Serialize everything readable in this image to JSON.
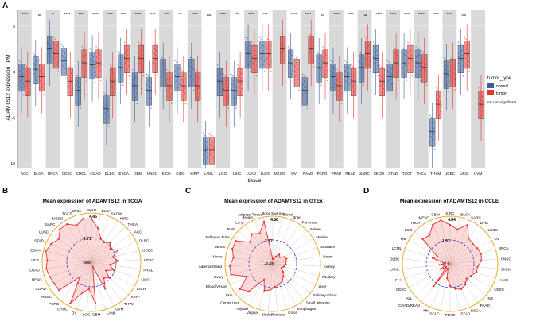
{
  "panel_labels": {
    "a": "A",
    "b": "B",
    "c": "C",
    "d": "D"
  },
  "colors": {
    "normal": "#3b5ea0",
    "tumor": "#e8322e",
    "accent": "#f0a830",
    "ref": "#2a3fd8"
  },
  "panel_a": {
    "ylabel": "ADAMTS12 expression TPM",
    "xlabel": "tissue",
    "legend_title": "tumor_type",
    "legend_items": [
      "normal",
      "tumor"
    ],
    "legend_note": "ns: non-significant",
    "yticks": [
      5,
      0,
      -5,
      -10
    ]
  },
  "chart_data": [
    {
      "type": "box",
      "title": "",
      "xlabel": "tissue",
      "ylabel": "ADAMTS12 expression TPM",
      "ylim": [
        -10.5,
        6.8
      ],
      "categories": [
        "ACC",
        "BLCA",
        "BRCA",
        "CESC",
        "CHOL",
        "COAD",
        "DLBC",
        "ESCA",
        "GBM",
        "HNSC",
        "KICH",
        "KIRC",
        "KIRP",
        "LAML",
        "LGG",
        "LIHC",
        "LUAD",
        "LUSC",
        "MESO",
        "OV",
        "PAAD",
        "PCPG",
        "PRAD",
        "READ",
        "SARC",
        "SKCM",
        "STAD",
        "TGCT",
        "THCA",
        "THYM",
        "UCEC",
        "UCS",
        "UVM"
      ],
      "significance": [
        "****",
        "ns",
        "*",
        "****",
        "****",
        "****",
        "****",
        "****",
        "****",
        "****",
        "***",
        "**",
        "****",
        "ns",
        "****",
        "**",
        "****",
        "***",
        "",
        "****",
        "****",
        "ns",
        "****",
        "****",
        "ns",
        "****",
        "****",
        "****",
        "****",
        "****",
        "****",
        "ns",
        ""
      ],
      "series": [
        {
          "name": "normal",
          "medians": [
            -0.5,
            0.3,
            2.5,
            1.2,
            -2.0,
            0.8,
            -4.0,
            0.5,
            -1.5,
            -2.0,
            0.0,
            -0.5,
            0.0,
            -8.5,
            -1.0,
            -2.0,
            2.0,
            2.0,
            null,
            1.0,
            -2.0,
            0.5,
            -0.5,
            -0.5,
            0.5,
            1.5,
            -0.5,
            1.0,
            1.0,
            -6.5,
            -0.2,
            1.5,
            null
          ]
        },
        {
          "name": "tumor",
          "medians": [
            -1.0,
            -0.5,
            2.0,
            -1.0,
            1.0,
            1.0,
            -1.0,
            1.5,
            1.5,
            1.5,
            -1.5,
            -1.5,
            -1.5,
            -8.5,
            -2.0,
            -1.0,
            1.5,
            2.0,
            2.5,
            0.0,
            2.5,
            1.0,
            -1.5,
            -1.0,
            2.0,
            -1.0,
            1.0,
            1.5,
            0.5,
            -3.5,
            0.0,
            2.0,
            -3.5
          ]
        }
      ]
    },
    {
      "type": "radar",
      "title": "Mean expression of ADAMTS12 in TCGA",
      "categories": [
        "PAAD",
        "BLCA",
        "SKCM",
        "KIRC",
        "THCA",
        "ACC",
        "DLBC",
        "UCEC",
        "CESC",
        "PRAD",
        "LIHC",
        "KICH",
        "KIRP",
        "THYM",
        "UVM",
        "LAML",
        "GBM",
        "LGG",
        "OV",
        "CHOL",
        "PCPG",
        "HNSC",
        "COAD",
        "READ",
        "LUAD",
        "UCS",
        "ESCA",
        "STAD",
        "LUSC",
        "SARC",
        "MESO",
        "TGCT",
        "BRCA"
      ],
      "ring_labels": [
        "4.46",
        "-2.71",
        "-9.87"
      ],
      "range": [
        -9.87,
        4.46
      ],
      "values": [
        2.8,
        0.2,
        -2.5,
        -3.0,
        -2.0,
        -3.2,
        -1.5,
        -3.5,
        -2.0,
        -4.5,
        -3.0,
        -5.0,
        -3.0,
        -4.0,
        -1.2,
        -8.5,
        2.0,
        -2.0,
        -0.6,
        3.6,
        -4.5,
        2.6,
        2.6,
        3.0,
        3.4,
        3.0,
        3.8,
        3.0,
        1.8,
        3.4,
        3.3,
        1.7,
        3.0
      ]
    },
    {
      "type": "radar",
      "title": "Mean expression of ADAMTS12 in GTEx",
      "categories": [
        "Bone Marrow",
        "Blood",
        "Brain",
        "Pancreas",
        "Spleen",
        "Muscle",
        "Stomach",
        "Heart",
        "Kidney",
        "Pituitary",
        "Liver",
        "Salivary Gland",
        "Small Intestine",
        "Esophagus",
        "Colon",
        "Prostate",
        "Bladder",
        "Vagina",
        "Thyroid",
        "Cervix Uteri",
        "Skin",
        "Blood Vessel",
        "Ovary",
        "Adrenal Gland",
        "Nerve",
        "Uterus",
        "Fallopian Tube",
        "Testis",
        "Lung",
        "Breast",
        "Adipose Tissue"
      ],
      "ring_labels": [
        "4.88",
        "-2.27",
        "-9.42"
      ],
      "range": [
        -9.42,
        4.88
      ],
      "values": [
        -8.0,
        -7.5,
        -7.0,
        -6.0,
        -6.5,
        -5.5,
        -5.0,
        -5.5,
        -5.5,
        -6.0,
        -6.5,
        -5.5,
        -4.5,
        -3.5,
        -3.0,
        -2.5,
        -1.5,
        -1.0,
        -4.0,
        1.5,
        3.0,
        -0.8,
        3.5,
        3.5,
        2.5,
        3.5,
        3.6,
        0.0,
        1.5,
        0.5,
        3.5
      ]
    },
    {
      "type": "radar",
      "title": "Mean expression of ADAMTS12 in CCLE",
      "categories": [
        "KIRC",
        "BLCA",
        "SARC",
        "LIHC",
        "LUSC",
        "OV",
        "BRCA",
        "HNSC",
        "SKCM",
        "LUAD",
        "UCEC",
        "NB",
        "PAAD",
        "ESCA",
        "STAD",
        "PRAD",
        "SCLC",
        "MM",
        "COAD/READ",
        "ALL",
        "CESC",
        "CLL",
        "LAML",
        "DLBC",
        "LCML",
        "MB",
        "LGG",
        "THCA",
        "MESO",
        "GBM"
      ],
      "ring_labels": [
        "4.84",
        "-1.53",
        "-7.9"
      ],
      "range": [
        -7.9,
        4.84
      ],
      "values": [
        2.5,
        1.5,
        3.5,
        0.5,
        0.2,
        0.5,
        0.8,
        0.5,
        -0.5,
        -0.5,
        -1.5,
        -2.0,
        -1.0,
        -0.5,
        -1.0,
        -2.0,
        -4.0,
        -6.5,
        -0.5,
        -6.5,
        -5.0,
        -6.5,
        -5.0,
        -6.5,
        -3.0,
        -4.0,
        2.0,
        1.5,
        3.5,
        4.0
      ]
    }
  ]
}
